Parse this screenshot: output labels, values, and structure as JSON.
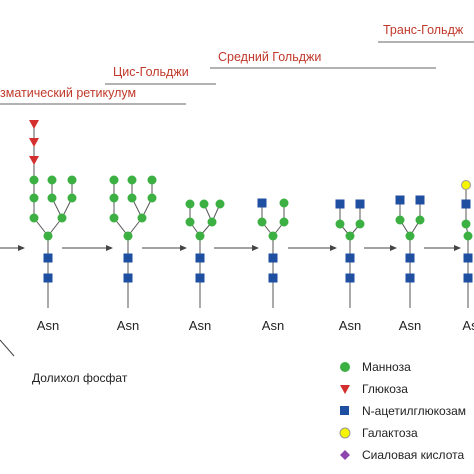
{
  "stages": [
    {
      "label": "Транс-Гольдж"
    },
    {
      "label": "Средний Гольджи"
    },
    {
      "label": "Цис-Гольджи"
    },
    {
      "label": "зматический ретикулум"
    }
  ],
  "asn_labels": [
    "Asn",
    "Asn",
    "Asn",
    "Asn",
    "Asn",
    "Asn",
    "As"
  ],
  "dolichol_label": "Долихол фосфат",
  "legend": [
    {
      "label": "Манноза"
    },
    {
      "label": "Глюкоза"
    },
    {
      "label": "N-ацетилглюкозам"
    },
    {
      "label": "Галактоза"
    },
    {
      "label": "Сиаловая кислота"
    }
  ]
}
